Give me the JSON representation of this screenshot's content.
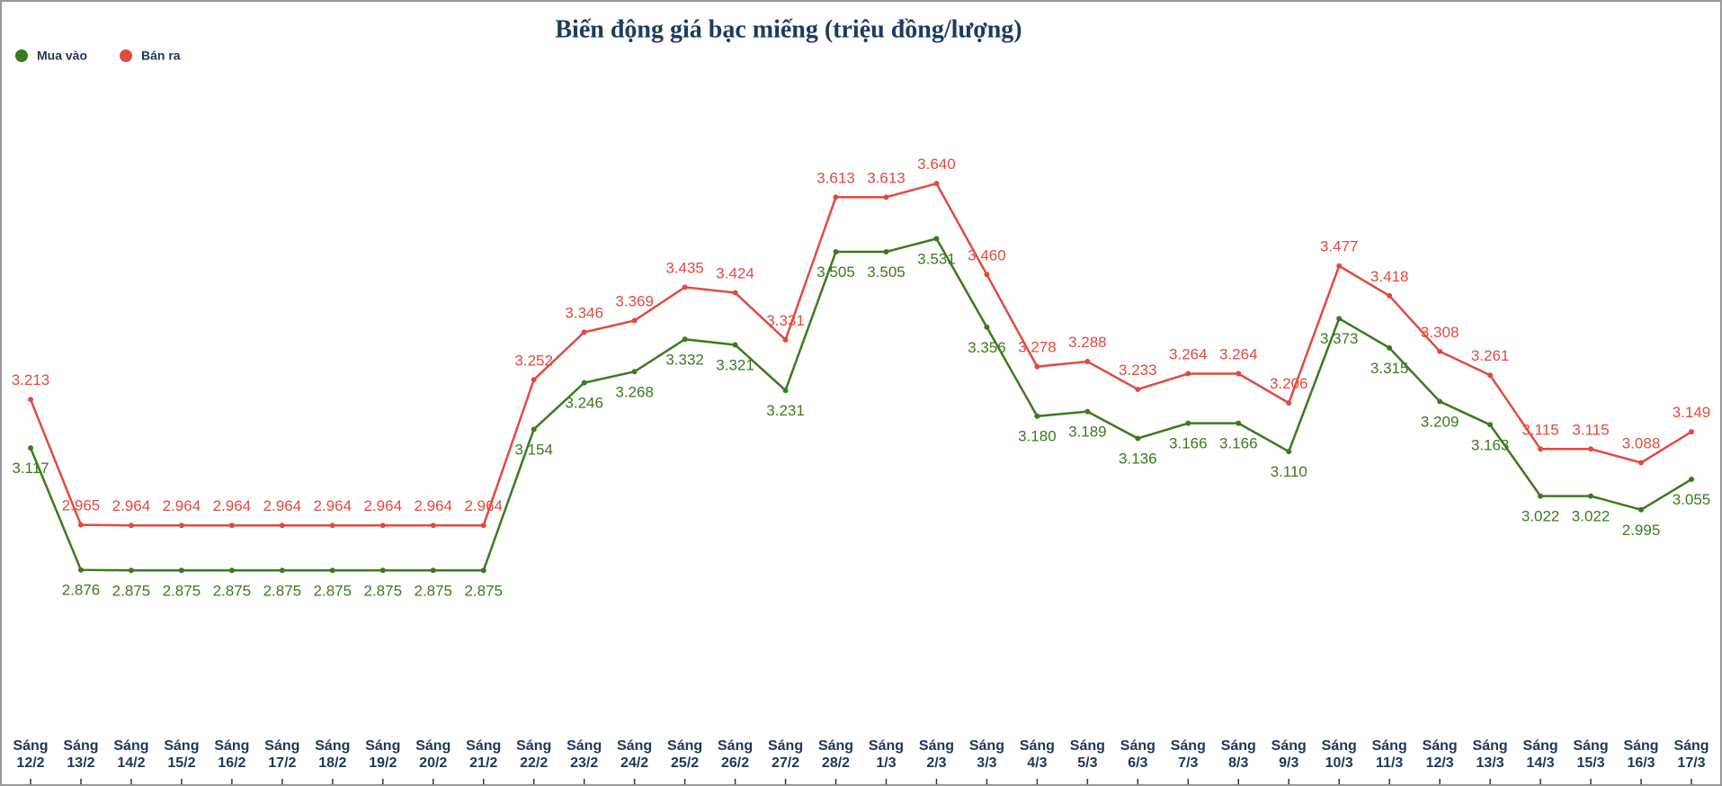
{
  "chart_data": {
    "type": "line",
    "title": "Biến động giá bạc miếng (triệu đồng/lượng)",
    "categories": [
      "Sáng 12/2",
      "Sáng 13/2",
      "Sáng 14/2",
      "Sáng 15/2",
      "Sáng 16/2",
      "Sáng 17/2",
      "Sáng 18/2",
      "Sáng 19/2",
      "Sáng 20/2",
      "Sáng 21/2",
      "Sáng 22/2",
      "Sáng 23/2",
      "Sáng 24/2",
      "Sáng 25/2",
      "Sáng 26/2",
      "Sáng 27/2",
      "Sáng 28/2",
      "Sáng 1/3",
      "Sáng 2/3",
      "Sáng 3/3",
      "Sáng 4/3",
      "Sáng 5/3",
      "Sáng 6/3",
      "Sáng 7/3",
      "Sáng 8/3",
      "Sáng 9/3",
      "Sáng 10/3",
      "Sáng 11/3",
      "Sáng 12/3",
      "Sáng 13/3",
      "Sáng 14/3",
      "Sáng 15/3",
      "Sáng 16/3",
      "Sáng 17/3"
    ],
    "series": [
      {
        "name": "Mua vào",
        "color": "#3b7a1f",
        "values": [
          3.117,
          2.876,
          2.875,
          2.875,
          2.875,
          2.875,
          2.875,
          2.875,
          2.875,
          2.875,
          3.154,
          3.246,
          3.268,
          3.332,
          3.321,
          3.231,
          3.505,
          3.505,
          3.531,
          3.356,
          3.18,
          3.189,
          3.136,
          3.166,
          3.166,
          3.11,
          3.373,
          3.315,
          3.209,
          3.163,
          3.022,
          3.022,
          2.995,
          3.055
        ],
        "value_labels": [
          "3.117",
          "2.876",
          "2.875",
          "2.875",
          "2.875",
          "2.875",
          "2.875",
          "2.875",
          "2.875",
          "2.875",
          "3.154",
          "3.246",
          "3.268",
          "3.332",
          "3.321",
          "3.231",
          "3.505",
          "3.505",
          "3.531",
          "3.356",
          "3.180",
          "3.189",
          "3.136",
          "3.166",
          "3.166",
          "3.110",
          "3.373",
          "3.315",
          "3.209",
          "3.163",
          "3.022",
          "3.022",
          "2.995",
          "3.055"
        ]
      },
      {
        "name": "Bán ra",
        "color": "#e04b3f",
        "values": [
          3.213,
          2.965,
          2.964,
          2.964,
          2.964,
          2.964,
          2.964,
          2.964,
          2.964,
          2.964,
          3.252,
          3.346,
          3.369,
          3.435,
          3.424,
          3.331,
          3.613,
          3.613,
          3.64,
          3.46,
          3.278,
          3.288,
          3.233,
          3.264,
          3.264,
          3.206,
          3.477,
          3.418,
          3.308,
          3.261,
          3.115,
          3.115,
          3.088,
          3.149
        ],
        "value_labels": [
          "3.213",
          "2.965",
          "2.964",
          "2.964",
          "2.964",
          "2.964",
          "2.964",
          "2.964",
          "2.964",
          "2.964",
          "3.252",
          "3.346",
          "3.369",
          "3.435",
          "3.424",
          "3.331",
          "3.613",
          "3.613",
          "3.640",
          "3.460",
          "3.278",
          "3.288",
          "3.233",
          "3.264",
          "3.264",
          "3.206",
          "3.477",
          "3.418",
          "3.308",
          "3.261",
          "3.115",
          "3.115",
          "3.088",
          "3.149"
        ]
      }
    ],
    "ylim": [
      2.55,
      3.85
    ]
  }
}
